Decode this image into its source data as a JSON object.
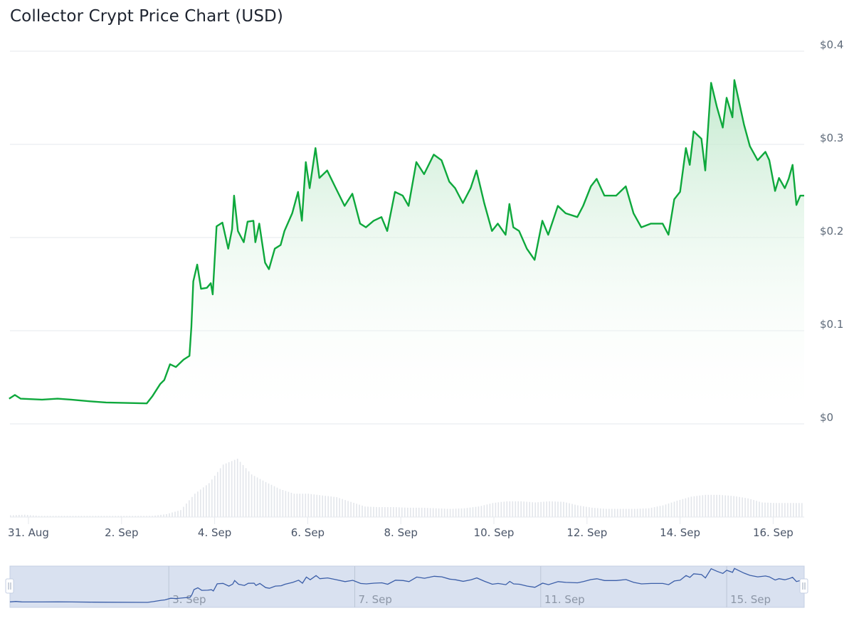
{
  "title": "Collector Crypt Price Chart (USD)",
  "chart_data": {
    "type": "area",
    "title": "Collector Crypt Price Chart (USD)",
    "xlabel": "",
    "ylabel": "",
    "ylim": [
      0,
      0.4
    ],
    "y_ticks": [
      "$0",
      "$0.1",
      "$0.2",
      "$0.3",
      "$0.4"
    ],
    "y_tick_values": [
      0,
      0.1,
      0.2,
      0.3,
      0.4
    ],
    "x_ticks": [
      "31. Aug",
      "2. Sep",
      "4. Sep",
      "6. Sep",
      "8. Sep",
      "10. Sep",
      "12. Sep",
      "14. Sep",
      "16. Sep"
    ],
    "x_tick_dates": [
      "Aug 31 00:00",
      "Sep 2 00:00",
      "Sep 4 00:00",
      "Sep 6 00:00",
      "Sep 8 00:00",
      "Sep 10 00:00",
      "Sep 12 00:00",
      "Sep 14 00:00",
      "Sep 16 00:00"
    ],
    "xlim": [
      "Aug 30 14:00",
      "Sep 16 16:00"
    ],
    "grid": true,
    "colors": {
      "line": "#0ea83c",
      "fill_top": "#b9e6c6",
      "volume": "#e3e6eb",
      "navigator_line": "#3b5ea8",
      "navigator_bg": "#d9e1f0",
      "grid": "#e6e9ee"
    },
    "series": [
      {
        "points": [
          [
            "Aug 30 14:00",
            0.027
          ],
          [
            "Aug 30 17:00",
            0.031
          ],
          [
            "Aug 30 20:00",
            0.027
          ],
          [
            "Aug 31 07:00",
            0.026
          ],
          [
            "Aug 31 15:00",
            0.027
          ],
          [
            "Aug 31 22:00",
            0.026
          ],
          [
            "Sep 1 09:00",
            0.024
          ],
          [
            "Sep 1 16:00",
            0.023
          ],
          [
            "Sep 2 13:00",
            0.022
          ],
          [
            "Sep 2 16:00",
            0.03
          ],
          [
            "Sep 2 20:00",
            0.043
          ],
          [
            "Sep 2 22:00",
            0.047
          ],
          [
            "Sep 3 01:00",
            0.064
          ],
          [
            "Sep 3 04:00",
            0.061
          ],
          [
            "Sep 3 08:00",
            0.069
          ],
          [
            "Sep 3 11:00",
            0.073
          ],
          [
            "Sep 3 12:00",
            0.104
          ],
          [
            "Sep 3 13:00",
            0.153
          ],
          [
            "Sep 3 15:00",
            0.171
          ],
          [
            "Sep 3 17:00",
            0.145
          ],
          [
            "Sep 3 20:00",
            0.146
          ],
          [
            "Sep 3 22:00",
            0.151
          ],
          [
            "Sep 3 23:00",
            0.139
          ],
          [
            "Sep 4 01:00",
            0.212
          ],
          [
            "Sep 4 04:00",
            0.216
          ],
          [
            "Sep 4 07:00",
            0.188
          ],
          [
            "Sep 4 09:00",
            0.209
          ],
          [
            "Sep 4 10:00",
            0.245
          ],
          [
            "Sep 4 12:00",
            0.207
          ],
          [
            "Sep 4 15:00",
            0.195
          ],
          [
            "Sep 4 17:00",
            0.217
          ],
          [
            "Sep 4 20:00",
            0.218
          ],
          [
            "Sep 4 21:00",
            0.195
          ],
          [
            "Sep 4 23:00",
            0.215
          ],
          [
            "Sep 5 02:00",
            0.173
          ],
          [
            "Sep 5 04:00",
            0.166
          ],
          [
            "Sep 5 07:00",
            0.188
          ],
          [
            "Sep 5 10:00",
            0.192
          ],
          [
            "Sep 5 12:00",
            0.207
          ],
          [
            "Sep 5 16:00",
            0.226
          ],
          [
            "Sep 5 19:00",
            0.249
          ],
          [
            "Sep 5 21:00",
            0.218
          ],
          [
            "Sep 5 23:00",
            0.281
          ],
          [
            "Sep 6 01:00",
            0.253
          ],
          [
            "Sep 6 04:00",
            0.296
          ],
          [
            "Sep 6 06:00",
            0.264
          ],
          [
            "Sep 6 10:00",
            0.272
          ],
          [
            "Sep 6 14:00",
            0.255
          ],
          [
            "Sep 6 19:00",
            0.234
          ],
          [
            "Sep 6 23:00",
            0.247
          ],
          [
            "Sep 7 03:00",
            0.215
          ],
          [
            "Sep 7 06:00",
            0.211
          ],
          [
            "Sep 7 10:00",
            0.218
          ],
          [
            "Sep 7 14:00",
            0.222
          ],
          [
            "Sep 7 17:00",
            0.207
          ],
          [
            "Sep 7 21:00",
            0.249
          ],
          [
            "Sep 8 01:00",
            0.245
          ],
          [
            "Sep 8 04:00",
            0.234
          ],
          [
            "Sep 8 08:00",
            0.281
          ],
          [
            "Sep 8 12:00",
            0.268
          ],
          [
            "Sep 8 17:00",
            0.289
          ],
          [
            "Sep 8 21:00",
            0.283
          ],
          [
            "Sep 9 01:00",
            0.26
          ],
          [
            "Sep 9 04:00",
            0.253
          ],
          [
            "Sep 9 08:00",
            0.237
          ],
          [
            "Sep 9 12:00",
            0.253
          ],
          [
            "Sep 9 15:00",
            0.272
          ],
          [
            "Sep 9 19:00",
            0.237
          ],
          [
            "Sep 9 23:00",
            0.207
          ],
          [
            "Sep 10 02:00",
            0.215
          ],
          [
            "Sep 10 06:00",
            0.203
          ],
          [
            "Sep 10 08:00",
            0.236
          ],
          [
            "Sep 10 10:00",
            0.211
          ],
          [
            "Sep 10 13:00",
            0.207
          ],
          [
            "Sep 10 17:00",
            0.188
          ],
          [
            "Sep 10 21:00",
            0.176
          ],
          [
            "Sep 11 01:00",
            0.218
          ],
          [
            "Sep 11 04:00",
            0.203
          ],
          [
            "Sep 11 09:00",
            0.234
          ],
          [
            "Sep 11 13:00",
            0.226
          ],
          [
            "Sep 11 19:00",
            0.222
          ],
          [
            "Sep 11 22:00",
            0.234
          ],
          [
            "Sep 12 02:00",
            0.255
          ],
          [
            "Sep 12 05:00",
            0.263
          ],
          [
            "Sep 12 09:00",
            0.245
          ],
          [
            "Sep 12 15:00",
            0.245
          ],
          [
            "Sep 12 20:00",
            0.255
          ],
          [
            "Sep 13 00:00",
            0.226
          ],
          [
            "Sep 13 04:00",
            0.211
          ],
          [
            "Sep 13 09:00",
            0.215
          ],
          [
            "Sep 13 15:00",
            0.215
          ],
          [
            "Sep 13 18:00",
            0.203
          ],
          [
            "Sep 13 21:00",
            0.241
          ],
          [
            "Sep 14 00:00",
            0.249
          ],
          [
            "Sep 14 03:00",
            0.296
          ],
          [
            "Sep 14 05:00",
            0.278
          ],
          [
            "Sep 14 07:00",
            0.314
          ],
          [
            "Sep 14 11:00",
            0.306
          ],
          [
            "Sep 14 13:00",
            0.272
          ],
          [
            "Sep 14 16:00",
            0.366
          ],
          [
            "Sep 14 19:00",
            0.34
          ],
          [
            "Sep 14 22:00",
            0.318
          ],
          [
            "Sep 15 00:00",
            0.35
          ],
          [
            "Sep 15 03:00",
            0.329
          ],
          [
            "Sep 15 04:00",
            0.369
          ],
          [
            "Sep 15 07:00",
            0.34
          ],
          [
            "Sep 15 09:00",
            0.321
          ],
          [
            "Sep 15 12:00",
            0.298
          ],
          [
            "Sep 15 16:00",
            0.283
          ],
          [
            "Sep 15 20:00",
            0.292
          ],
          [
            "Sep 15 22:00",
            0.283
          ],
          [
            "Sep 16 01:00",
            0.25
          ],
          [
            "Sep 16 03:00",
            0.264
          ],
          [
            "Sep 16 06:00",
            0.253
          ],
          [
            "Sep 16 08:00",
            0.263
          ],
          [
            "Sep 16 10:00",
            0.278
          ],
          [
            "Sep 16 12:00",
            0.235
          ],
          [
            "Sep 16 14:00",
            0.245
          ],
          [
            "Sep 16 16:00",
            0.245
          ]
        ]
      }
    ],
    "volume_relative": [
      0.03,
      0.04,
      0.02,
      0.02,
      0.02,
      0.02,
      0.02,
      0.02,
      0.02,
      0.02,
      0.02,
      0.05,
      0.12,
      0.4,
      0.58,
      0.9,
      1.0,
      0.73,
      0.6,
      0.48,
      0.4,
      0.4,
      0.37,
      0.34,
      0.26,
      0.18,
      0.17,
      0.17,
      0.16,
      0.16,
      0.15,
      0.14,
      0.15,
      0.18,
      0.24,
      0.27,
      0.27,
      0.25,
      0.27,
      0.26,
      0.2,
      0.16,
      0.14,
      0.14,
      0.14,
      0.15,
      0.2,
      0.28,
      0.35,
      0.38,
      0.38,
      0.36,
      0.32,
      0.25,
      0.24,
      0.24,
      0.24
    ],
    "navigator": {
      "labels": [
        "3. Sep",
        "7. Sep",
        "11. Sep",
        "15. Sep"
      ],
      "label_dates": [
        "Sep 3 00:00",
        "Sep 7 00:00",
        "Sep 11 00:00",
        "Sep 15 00:00"
      ],
      "selection": [
        "Aug 30 14:00",
        "Sep 16 16:00"
      ]
    }
  }
}
